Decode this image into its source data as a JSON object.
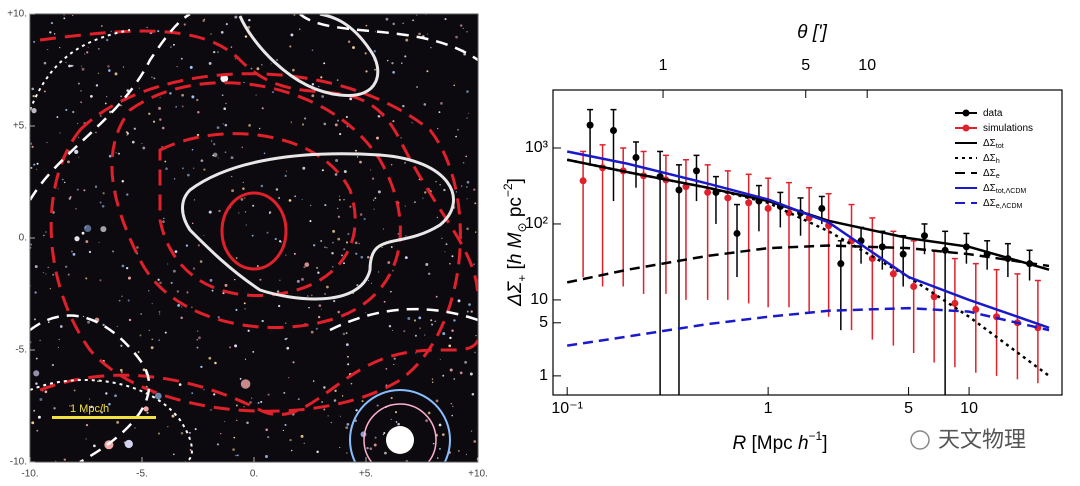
{
  "chart_data": [
    {
      "type": "image",
      "xlim": [
        -10,
        10
      ],
      "ylim": [
        -10,
        10
      ],
      "xticks": [
        {
          "value": -10,
          "label": "-10."
        },
        {
          "value": -5,
          "label": "-5."
        },
        {
          "value": 0,
          "label": "0."
        },
        {
          "value": 5,
          "label": "+5."
        },
        {
          "value": 10,
          "label": "+10."
        }
      ],
      "yticks": [
        {
          "value": -10,
          "label": "-10."
        },
        {
          "value": -5,
          "label": "-5."
        },
        {
          "value": 0,
          "label": "0."
        },
        {
          "value": 5,
          "label": "+5."
        },
        {
          "value": 10,
          "label": "+10."
        }
      ],
      "scale_bar": "1 Mpc/h",
      "scale_bar_color": "#f0e040"
    },
    {
      "type": "line",
      "log_x": true,
      "log_y": true,
      "xlabel": [
        "R",
        " [Mpc ",
        "h",
        "−1",
        "]"
      ],
      "ylabel": [
        "ΔΣ",
        "+",
        " [",
        "h",
        " M",
        "⊙",
        " pc",
        "−2",
        "]"
      ],
      "x2label": "θ [']",
      "xlim": [
        0.085,
        29
      ],
      "ylim": [
        0.56,
        5800
      ],
      "x2lim": [
        0.289,
        90
      ],
      "xticks": [
        {
          "value": 0.1,
          "label": "10⁻¹"
        },
        1,
        5,
        10
      ],
      "yticks": [
        1,
        5,
        10,
        {
          "value": 100,
          "label": "10²"
        },
        {
          "value": 1000,
          "label": "10³"
        }
      ],
      "x2ticks": [
        1,
        5,
        10
      ],
      "series": [
        {
          "name": "data",
          "color": "#000000",
          "style": "points",
          "x": [
            0.13,
            0.17,
            0.22,
            0.29,
            0.36,
            0.44,
            0.55,
            0.7,
            0.9,
            1.15,
            1.45,
            1.85,
            2.3,
            2.9,
            3.7,
            4.7,
            6,
            7.6,
            9.7,
            12.3,
            15.6,
            20
          ],
          "values": [
            2000,
            1700,
            750,
            420,
            280,
            500,
            260,
            75,
            200,
            170,
            140,
            160,
            30,
            60,
            50,
            40,
            70,
            45,
            50,
            40,
            35,
            30
          ],
          "lower": [
            600,
            200,
            300,
            0.5,
            0.5,
            200,
            100,
            20,
            80,
            90,
            70,
            100,
            4,
            30,
            25,
            15,
            40,
            0.5,
            30,
            25,
            20,
            18
          ],
          "upper": [
            3200,
            3200,
            1200,
            900,
            600,
            800,
            420,
            180,
            320,
            260,
            220,
            230,
            60,
            90,
            80,
            70,
            100,
            80,
            75,
            60,
            55,
            45
          ]
        },
        {
          "name": "simulations",
          "color": "#e0202a",
          "style": "points",
          "x": [
            0.12,
            0.15,
            0.19,
            0.24,
            0.31,
            0.39,
            0.5,
            0.63,
            0.8,
            1.0,
            1.27,
            1.6,
            2.0,
            2.6,
            3.3,
            4.2,
            5.3,
            6.7,
            8.5,
            10.8,
            13.7,
            17.4,
            22
          ],
          "values": [
            370,
            550,
            500,
            430,
            380,
            310,
            260,
            220,
            190,
            160,
            140,
            120,
            95,
            60,
            35,
            22,
            15,
            11,
            9,
            7.5,
            6,
            5,
            4.3
          ],
          "lower": [
            20,
            15,
            15,
            12,
            12,
            10,
            10,
            10,
            9,
            8,
            8,
            7,
            6,
            4,
            3,
            2.5,
            2,
            1.5,
            1.3,
            1.1,
            1,
            0.9,
            0.8
          ],
          "upper": [
            900,
            1100,
            1000,
            900,
            800,
            700,
            600,
            500,
            450,
            400,
            350,
            300,
            250,
            180,
            120,
            80,
            60,
            45,
            35,
            30,
            25,
            22,
            18
          ]
        },
        {
          "name": "ΔΣ",
          "subscript": "tot",
          "color": "#000000",
          "style": "solid",
          "x": [
            0.1,
            0.2,
            0.5,
            1,
            2,
            5,
            10,
            25
          ],
          "values": [
            700,
            480,
            300,
            200,
            110,
            65,
            50,
            25
          ]
        },
        {
          "name": "ΔΣ",
          "subscript": "h",
          "color": "#000000",
          "style": "dotted",
          "x": [
            0.1,
            0.2,
            0.5,
            1,
            2,
            5,
            10,
            25
          ],
          "values": [
            700,
            480,
            300,
            190,
            80,
            20,
            6,
            1
          ]
        },
        {
          "name": "ΔΣ",
          "subscript": "e",
          "color": "#000000",
          "style": "dashed",
          "x": [
            0.1,
            0.2,
            0.5,
            1,
            2,
            5,
            10,
            25
          ],
          "values": [
            17,
            25,
            38,
            48,
            52,
            48,
            40,
            28
          ]
        },
        {
          "name": "ΔΣ",
          "subscript": "tot,ΛCDM",
          "color": "#1a1acc",
          "style": "solid",
          "x": [
            0.1,
            0.2,
            0.5,
            1,
            2,
            5,
            10,
            25
          ],
          "values": [
            900,
            620,
            340,
            210,
            105,
            20,
            10,
            4.3
          ]
        },
        {
          "name": "ΔΣ",
          "subscript": "e,ΛCDM",
          "color": "#1a1acc",
          "style": "dashed",
          "x": [
            0.1,
            0.2,
            0.5,
            1,
            2,
            5,
            10,
            25
          ],
          "values": [
            2.5,
            3.3,
            4.8,
            6,
            7.2,
            7.8,
            7,
            4
          ]
        }
      ],
      "legend": "upper right"
    }
  ],
  "watermark": "天文物理"
}
